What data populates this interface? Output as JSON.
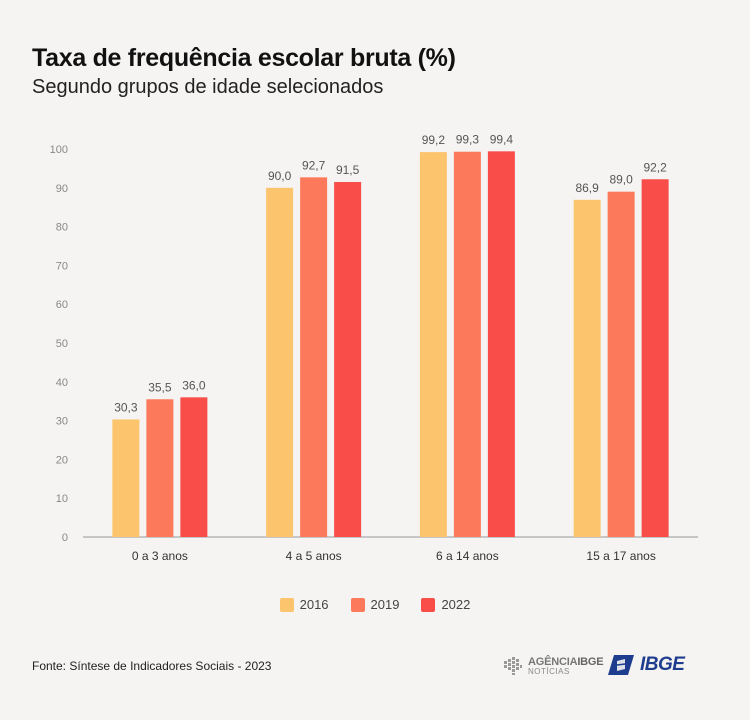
{
  "header": {
    "title": "Taxa de frequência escolar bruta (%)",
    "subtitle": "Segundo grupos de idade selecionados"
  },
  "chart_data": {
    "type": "bar",
    "title": "Taxa de frequência escolar bruta (%)",
    "subtitle": "Segundo grupos de idade selecionados",
    "xlabel": "",
    "ylabel": "",
    "ylim": [
      0,
      100
    ],
    "yticks": [
      0,
      10,
      20,
      30,
      40,
      50,
      60,
      70,
      80,
      90,
      100
    ],
    "categories": [
      "0 a 3 anos",
      "4 a 5 anos",
      "6 a 14 anos",
      "15 a 17 anos"
    ],
    "series": [
      {
        "name": "2016",
        "color": "#fdc46e",
        "values": [
          30.3,
          90.0,
          99.2,
          86.9
        ],
        "labels": [
          "30,3",
          "90,0",
          "99,2",
          "86,9"
        ]
      },
      {
        "name": "2019",
        "color": "#fc7a5b",
        "values": [
          35.5,
          92.7,
          99.3,
          89.0
        ],
        "labels": [
          "35,5",
          "92,7",
          "99,3",
          "89,0"
        ]
      },
      {
        "name": "2022",
        "color": "#f84d49",
        "values": [
          36.0,
          91.5,
          99.4,
          92.2
        ],
        "labels": [
          "36,0",
          "91,5",
          "99,4",
          "92,2"
        ]
      }
    ],
    "legend_position": "bottom-center",
    "grid": true
  },
  "footer": {
    "source": "Fonte: Síntese de Indicadores Sociais - 2023",
    "agencia_line1": "AGÊNCIA",
    "agencia_brand": "IBGE",
    "agencia_line2": "NOTÍCIAS",
    "ibge_logo": "IBGE"
  }
}
